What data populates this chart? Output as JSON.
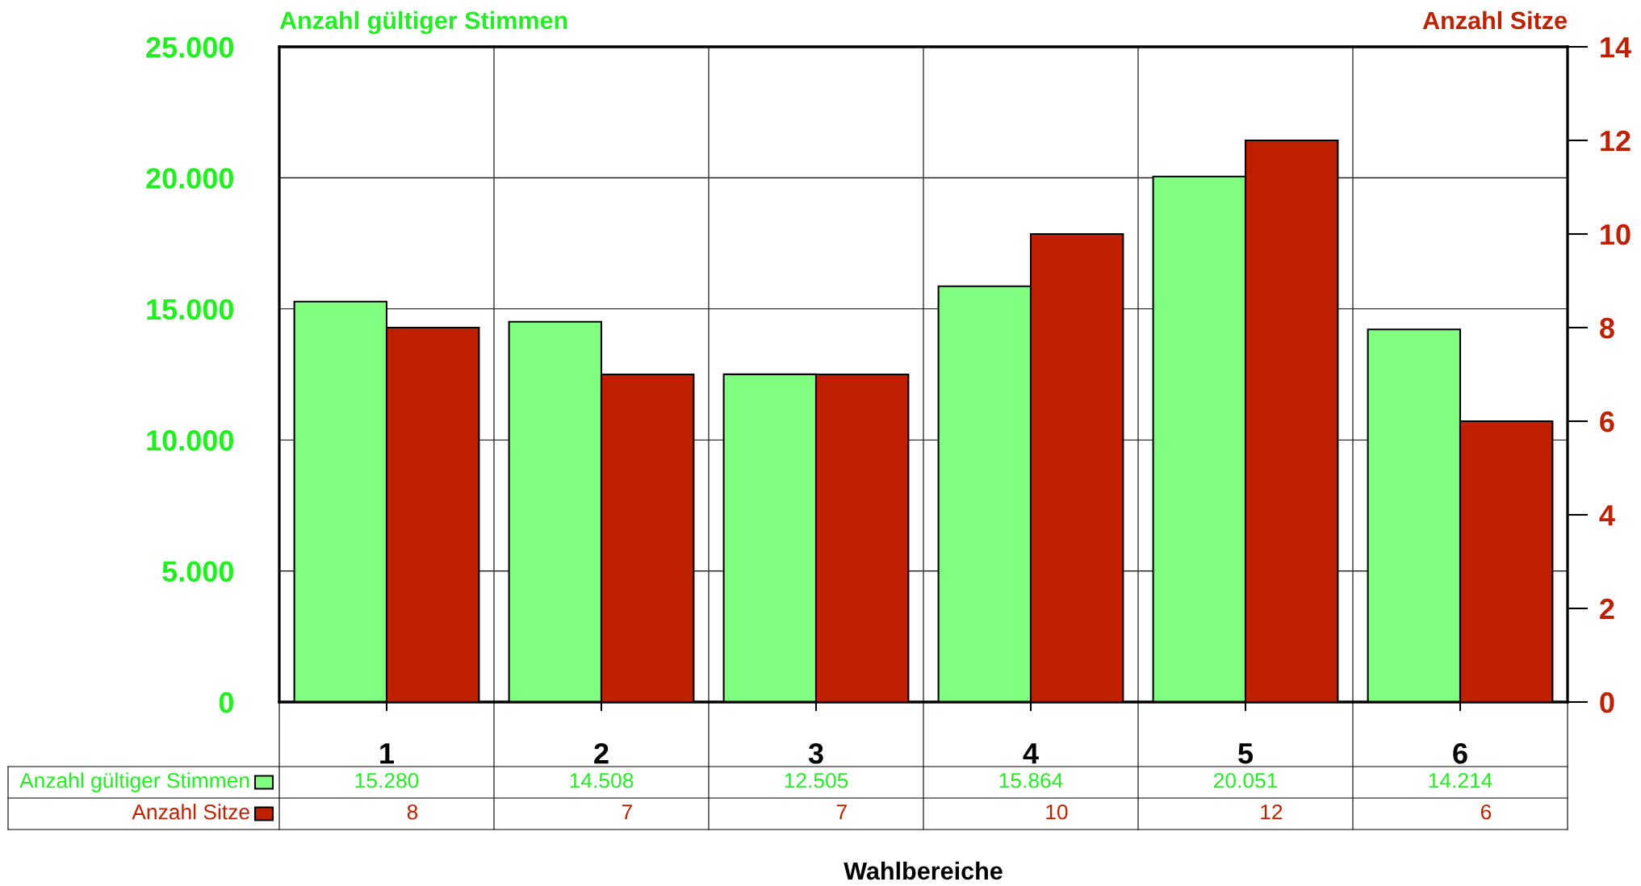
{
  "chart_data": {
    "type": "bar",
    "ylabel": "Anzahl gültiger Stimmen",
    "y2label": "Anzahl Sitze",
    "xlabel": "Wahlbereiche",
    "categories": [
      "1",
      "2",
      "3",
      "4",
      "5",
      "6"
    ],
    "series": [
      {
        "name": "Anzahl gültiger Stimmen",
        "color": "#80ff80",
        "axis": "y",
        "values": [
          15280,
          14508,
          12505,
          15864,
          20051,
          14214
        ],
        "value_labels": [
          "15.280",
          "14.508",
          "12.505",
          "15.864",
          "20.051",
          "14.214"
        ]
      },
      {
        "name": "Anzahl Sitze",
        "color": "#bf2000",
        "axis": "y2",
        "values": [
          8,
          7,
          7,
          10,
          12,
          6
        ],
        "value_labels": [
          "8",
          "7",
          "7",
          "10",
          "12",
          "6"
        ]
      }
    ],
    "ylim": [
      0,
      25000
    ],
    "yticks": [
      0,
      {
        "value": 5000,
        "label": "5.000"
      },
      {
        "value": 10000,
        "label": "10.000"
      },
      {
        "value": 15000,
        "label": "15.000"
      },
      {
        "value": 20000,
        "label": "20.000"
      },
      {
        "value": 25000,
        "label": "25.000"
      }
    ],
    "y2lim": [
      0,
      14
    ],
    "y2ticks": [
      0,
      2,
      4,
      6,
      8,
      10,
      12,
      14
    ],
    "grid": true,
    "legend": "bottom left"
  }
}
